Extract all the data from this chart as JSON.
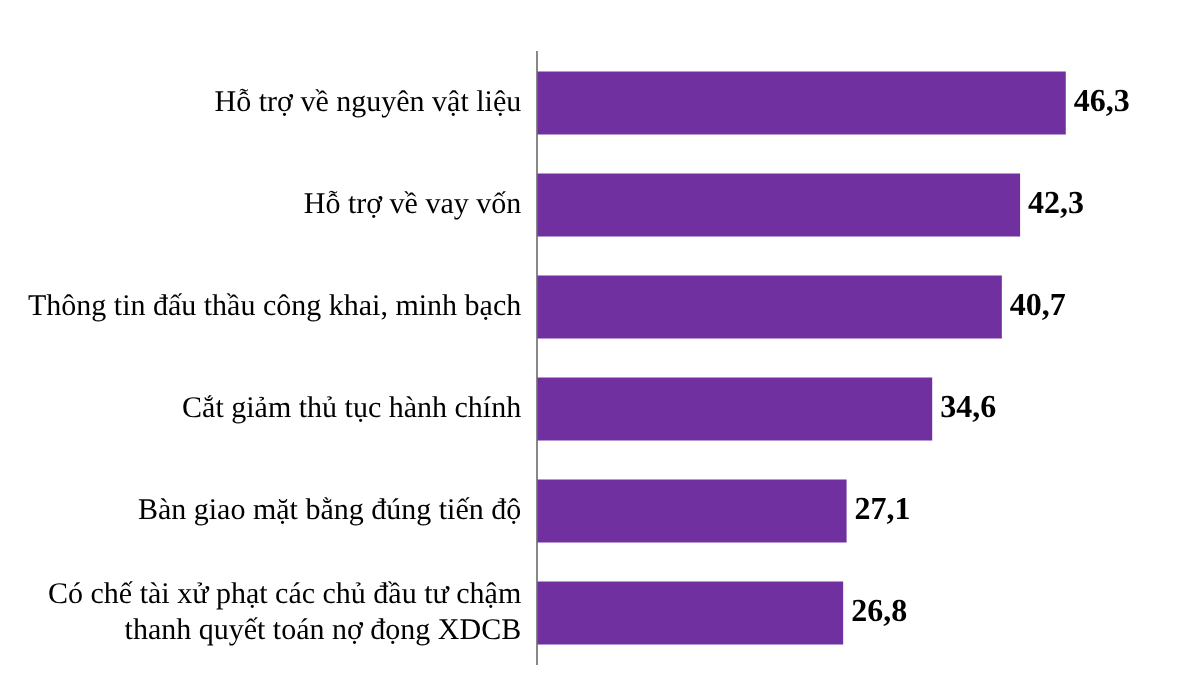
{
  "chart_data": {
    "type": "bar",
    "orientation": "horizontal",
    "categories": [
      "Hỗ trợ về nguyên vật liệu",
      "Hỗ trợ về vay vốn",
      "Thông tin đấu thầu công khai, minh bạch",
      "Cắt giảm thủ tục hành chính",
      "Bàn giao mặt bằng đúng tiến độ",
      "Có chế tài xử phạt các chủ đầu tư chậm thanh quyết toán nợ đọng XDCB"
    ],
    "values": [
      46.3,
      42.3,
      40.7,
      34.6,
      27.1,
      26.8
    ],
    "value_labels": [
      "46,3",
      "42,3",
      "40,7",
      "34,6",
      "27,1",
      "26,8"
    ],
    "color": "#7030a0",
    "grid": false,
    "legend": false
  }
}
